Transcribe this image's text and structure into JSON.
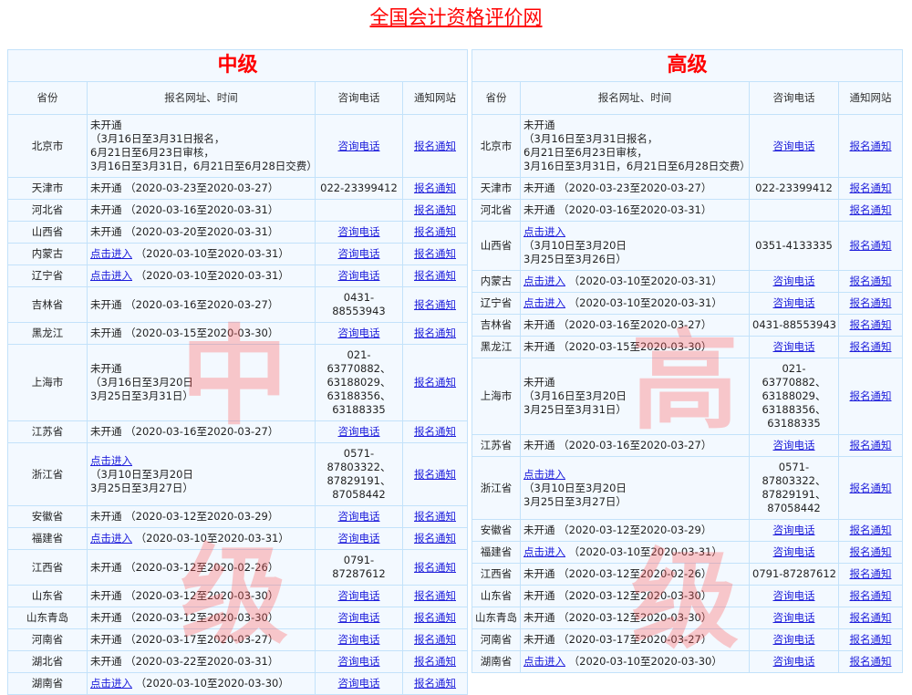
{
  "site_title": "全国会计资格评价网",
  "columns": [
    "省份",
    "报名网址、时间",
    "咨询电话",
    "通知网站"
  ],
  "colors": {
    "title": "#ff0000",
    "link": "#1d1ddb",
    "watermark": "#ff5a5a",
    "background": "#a9d3f2"
  },
  "panels": [
    {
      "id": "mid",
      "level": "中级",
      "watermark": [
        "中",
        "级"
      ],
      "rows": [
        {
          "province": "北京市",
          "reg_link": false,
          "reg_prefix": "未开通",
          "reg_lines": [
            "（3月16日至3月31日报名，",
            "6月21日至6月23日审核，",
            "3月16日至3月31日，6月21日至6月28日交费）"
          ],
          "phone_link": true,
          "phone": [
            "咨询电话"
          ],
          "notice": "报名通知"
        },
        {
          "province": "天津市",
          "reg_link": false,
          "reg_prefix": "未开通",
          "reg_inline": "（2020-03-23至2020-03-27）",
          "phone_link": false,
          "phone": [
            "022-23399412"
          ],
          "notice": "报名通知"
        },
        {
          "province": "河北省",
          "reg_link": false,
          "reg_prefix": "未开通",
          "reg_inline": "（2020-03-16至2020-03-31）",
          "phone_link": false,
          "phone": [],
          "notice": "报名通知"
        },
        {
          "province": "山西省",
          "reg_link": false,
          "reg_prefix": "未开通",
          "reg_inline": "（2020-03-20至2020-03-31）",
          "phone_link": true,
          "phone": [
            "咨询电话"
          ],
          "notice": "报名通知"
        },
        {
          "province": "内蒙古",
          "reg_link": true,
          "reg_prefix": "点击进入",
          "reg_inline": "（2020-03-10至2020-03-31）",
          "phone_link": true,
          "phone": [
            "咨询电话"
          ],
          "notice": "报名通知"
        },
        {
          "province": "辽宁省",
          "reg_link": true,
          "reg_prefix": "点击进入",
          "reg_inline": "（2020-03-10至2020-03-31）",
          "phone_link": true,
          "phone": [
            "咨询电话"
          ],
          "notice": "报名通知"
        },
        {
          "province": "吉林省",
          "reg_link": false,
          "reg_prefix": "未开通",
          "reg_inline": "（2020-03-16至2020-03-27）",
          "phone_link": false,
          "phone": [
            "0431-",
            "88553943"
          ],
          "notice": "报名通知"
        },
        {
          "province": "黑龙江",
          "reg_link": false,
          "reg_prefix": "未开通",
          "reg_inline": "（2020-03-15至2020-03-30）",
          "phone_link": true,
          "phone": [
            "咨询电话"
          ],
          "notice": "报名通知"
        },
        {
          "province": "上海市",
          "reg_link": false,
          "reg_prefix": "未开通",
          "reg_lines": [
            "（3月16日至3月20日",
            "3月25日至3月31日）"
          ],
          "phone_link": false,
          "phone": [
            "021-",
            "63770882、",
            "63188029、",
            "63188356、",
            "63188335"
          ],
          "notice": "报名通知"
        },
        {
          "province": "江苏省",
          "reg_link": false,
          "reg_prefix": "未开通",
          "reg_inline": "（2020-03-16至2020-03-27）",
          "phone_link": true,
          "phone": [
            "咨询电话"
          ],
          "notice": "报名通知"
        },
        {
          "province": "浙江省",
          "reg_link": true,
          "reg_prefix": "点击进入",
          "reg_lines": [
            "（3月10日至3月20日",
            "3月25日至3月27日）"
          ],
          "phone_link": false,
          "phone": [
            "0571-",
            "87803322、",
            "87829191、",
            "87058442"
          ],
          "notice": "报名通知"
        },
        {
          "province": "安徽省",
          "reg_link": false,
          "reg_prefix": "未开通",
          "reg_inline": "（2020-03-12至2020-03-29）",
          "phone_link": true,
          "phone": [
            "咨询电话"
          ],
          "notice": "报名通知"
        },
        {
          "province": "福建省",
          "reg_link": true,
          "reg_prefix": "点击进入",
          "reg_inline": "（2020-03-10至2020-03-31）",
          "phone_link": true,
          "phone": [
            "咨询电话"
          ],
          "notice": "报名通知"
        },
        {
          "province": "江西省",
          "reg_link": false,
          "reg_prefix": "未开通",
          "reg_inline": "（2020-03-12至2020-02-26）",
          "phone_link": false,
          "phone": [
            "0791-",
            "87287612"
          ],
          "notice": "报名通知"
        },
        {
          "province": "山东省",
          "reg_link": false,
          "reg_prefix": "未开通",
          "reg_inline": "（2020-03-12至2020-03-30）",
          "phone_link": true,
          "phone": [
            "咨询电话"
          ],
          "notice": "报名通知"
        },
        {
          "province": "山东青岛",
          "reg_link": false,
          "reg_prefix": "未开通",
          "reg_inline": "（2020-03-12至2020-03-30）",
          "phone_link": true,
          "phone": [
            "咨询电话"
          ],
          "notice": "报名通知"
        },
        {
          "province": "河南省",
          "reg_link": false,
          "reg_prefix": "未开通",
          "reg_inline": "（2020-03-17至2020-03-27）",
          "phone_link": true,
          "phone": [
            "咨询电话"
          ],
          "notice": "报名通知"
        },
        {
          "province": "湖北省",
          "reg_link": false,
          "reg_prefix": "未开通",
          "reg_inline": "（2020-03-22至2020-03-31）",
          "phone_link": true,
          "phone": [
            "咨询电话"
          ],
          "notice": "报名通知"
        },
        {
          "province": "湖南省",
          "reg_link": true,
          "reg_prefix": "点击进入",
          "reg_inline": "（2020-03-10至2020-03-30）",
          "phone_link": true,
          "phone": [
            "咨询电话"
          ],
          "notice": "报名通知"
        }
      ]
    },
    {
      "id": "high",
      "level": "高级",
      "watermark": [
        "高",
        "级"
      ],
      "rows": [
        {
          "province": "北京市",
          "reg_link": false,
          "reg_prefix": "未开通",
          "reg_lines": [
            "（3月16日至3月31日报名，",
            "6月21日至6月23日审核，",
            "3月16日至3月31日，6月21日至6月28日交费）"
          ],
          "phone_link": true,
          "phone": [
            "咨询电话"
          ],
          "notice": "报名通知"
        },
        {
          "province": "天津市",
          "reg_link": false,
          "reg_prefix": "未开通",
          "reg_inline": "（2020-03-23至2020-03-27）",
          "phone_link": false,
          "phone": [
            "022-23399412"
          ],
          "notice": "报名通知"
        },
        {
          "province": "河北省",
          "reg_link": false,
          "reg_prefix": "未开通",
          "reg_inline": "（2020-03-16至2020-03-31）",
          "phone_link": false,
          "phone": [],
          "notice": "报名通知"
        },
        {
          "province": "山西省",
          "reg_link": true,
          "reg_prefix": "点击进入",
          "reg_lines": [
            "（3月10日至3月20日",
            "3月25日至3月26日）"
          ],
          "phone_link": false,
          "phone": [
            "0351-4133335"
          ],
          "notice": "报名通知"
        },
        {
          "province": "内蒙古",
          "reg_link": true,
          "reg_prefix": "点击进入",
          "reg_inline": "（2020-03-10至2020-03-31）",
          "phone_link": true,
          "phone": [
            "咨询电话"
          ],
          "notice": "报名通知"
        },
        {
          "province": "辽宁省",
          "reg_link": true,
          "reg_prefix": "点击进入",
          "reg_inline": "（2020-03-10至2020-03-31）",
          "phone_link": true,
          "phone": [
            "咨询电话"
          ],
          "notice": "报名通知"
        },
        {
          "province": "吉林省",
          "reg_link": false,
          "reg_prefix": "未开通",
          "reg_inline": "（2020-03-16至2020-03-27）",
          "phone_link": false,
          "phone": [
            "0431-88553943"
          ],
          "notice": "报名通知"
        },
        {
          "province": "黑龙江",
          "reg_link": false,
          "reg_prefix": "未开通",
          "reg_inline": "（2020-03-15至2020-03-30）",
          "phone_link": true,
          "phone": [
            "咨询电话"
          ],
          "notice": "报名通知"
        },
        {
          "province": "上海市",
          "reg_link": false,
          "reg_prefix": "未开通",
          "reg_lines": [
            "（3月16日至3月20日",
            "3月25日至3月31日）"
          ],
          "phone_link": false,
          "phone": [
            "021-",
            "63770882、",
            "63188029、",
            "63188356、",
            "63188335"
          ],
          "notice": "报名通知"
        },
        {
          "province": "江苏省",
          "reg_link": false,
          "reg_prefix": "未开通",
          "reg_inline": "（2020-03-16至2020-03-27）",
          "phone_link": true,
          "phone": [
            "咨询电话"
          ],
          "notice": "报名通知"
        },
        {
          "province": "浙江省",
          "reg_link": true,
          "reg_prefix": "点击进入",
          "reg_lines": [
            "（3月10日至3月20日",
            "3月25日至3月27日）"
          ],
          "phone_link": false,
          "phone": [
            "0571-",
            "87803322、",
            "87829191、",
            "87058442"
          ],
          "notice": "报名通知"
        },
        {
          "province": "安徽省",
          "reg_link": false,
          "reg_prefix": "未开通",
          "reg_inline": "（2020-03-12至2020-03-29）",
          "phone_link": true,
          "phone": [
            "咨询电话"
          ],
          "notice": "报名通知"
        },
        {
          "province": "福建省",
          "reg_link": true,
          "reg_prefix": "点击进入",
          "reg_inline": "（2020-03-10至2020-03-31）",
          "phone_link": true,
          "phone": [
            "咨询电话"
          ],
          "notice": "报名通知"
        },
        {
          "province": "江西省",
          "reg_link": false,
          "reg_prefix": "未开通",
          "reg_inline": "（2020-03-12至2020-02-26）",
          "phone_link": false,
          "phone": [
            "0791-87287612"
          ],
          "notice": "报名通知"
        },
        {
          "province": "山东省",
          "reg_link": false,
          "reg_prefix": "未开通",
          "reg_inline": "（2020-03-12至2020-03-30）",
          "phone_link": true,
          "phone": [
            "咨询电话"
          ],
          "notice": "报名通知"
        },
        {
          "province": "山东青岛",
          "reg_link": false,
          "reg_prefix": "未开通",
          "reg_inline": "（2020-03-12至2020-03-30）",
          "phone_link": true,
          "phone": [
            "咨询电话"
          ],
          "notice": "报名通知"
        },
        {
          "province": "河南省",
          "reg_link": false,
          "reg_prefix": "未开通",
          "reg_inline": "（2020-03-17至2020-03-27）",
          "phone_link": true,
          "phone": [
            "咨询电话"
          ],
          "notice": "报名通知"
        },
        {
          "province": "湖南省",
          "reg_link": true,
          "reg_prefix": "点击进入",
          "reg_inline": "（2020-03-10至2020-03-30）",
          "phone_link": true,
          "phone": [
            "咨询电话"
          ],
          "notice": "报名通知"
        }
      ]
    }
  ]
}
